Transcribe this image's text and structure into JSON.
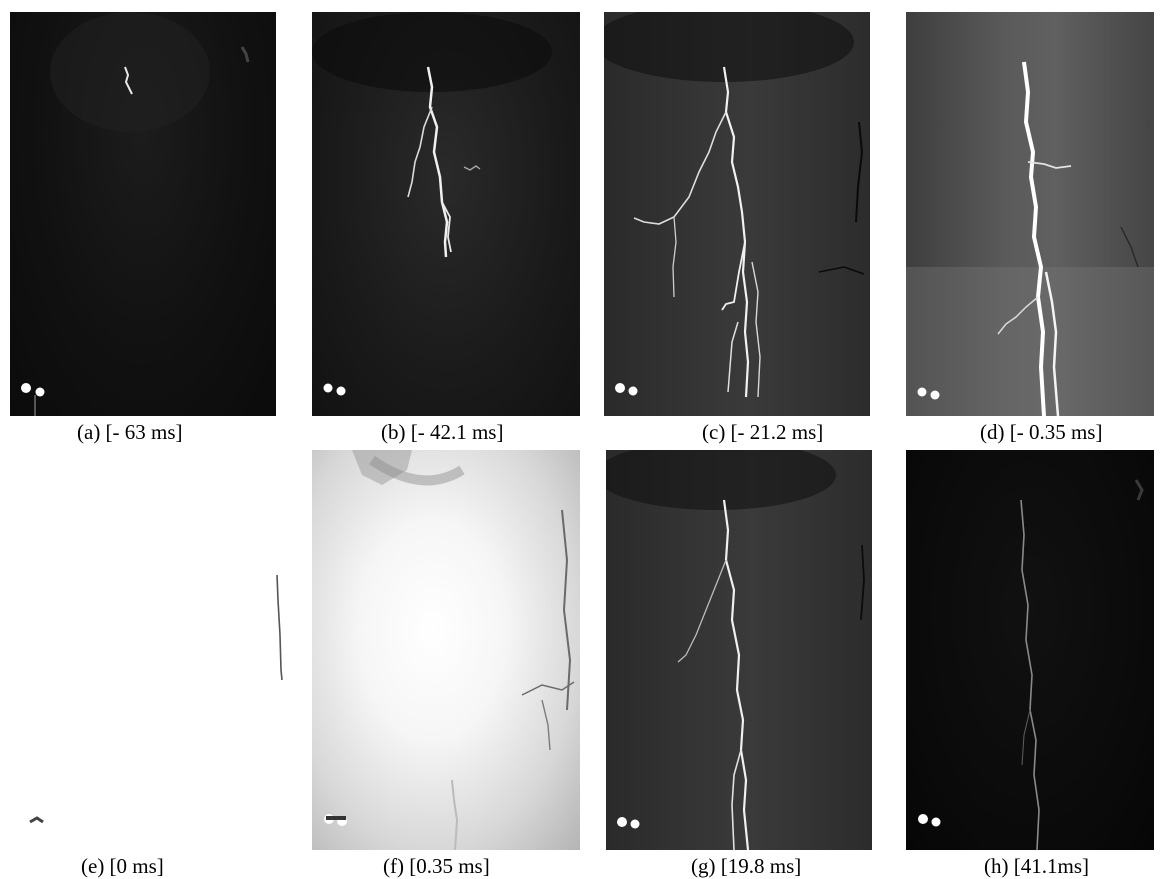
{
  "figure": {
    "panels": [
      {
        "caption": "(a) [- 63 ms]",
        "brightness": "dark"
      },
      {
        "caption": "(b) [- 42.1 ms]",
        "brightness": "dark"
      },
      {
        "caption": "(c) [- 21.2 ms]",
        "brightness": "dark"
      },
      {
        "caption": "(d) [- 0.35 ms]",
        "brightness": "bright"
      },
      {
        "caption": "(e) [0 ms]",
        "brightness": "saturated-white"
      },
      {
        "caption": "(f) [0.35 ms]",
        "brightness": "very-bright"
      },
      {
        "caption": "(g) [19.8 ms]",
        "brightness": "dark"
      },
      {
        "caption": "(h) [41.1ms]",
        "brightness": "very-dark"
      }
    ],
    "colors": {
      "lightning": "#ffffff",
      "background_dark": "#111111",
      "flash": "#f6f6f6"
    }
  }
}
